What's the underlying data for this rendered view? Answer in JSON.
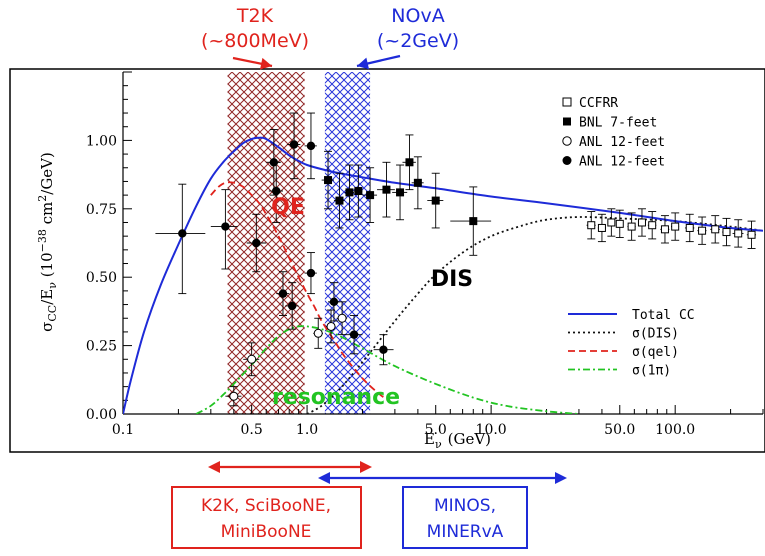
{
  "annotations": {
    "t2k": {
      "name": "T2K",
      "energy": "(~800MeV)",
      "color": "#e0231d"
    },
    "nova": {
      "name": "NOvA",
      "energy": "(~2GeV)",
      "color": "#1e2bd8"
    },
    "k2k": {
      "line1": "K2K, SciBooNE,",
      "line2": "MiniBooNE",
      "color": "#e0231d"
    },
    "minos": {
      "line1": "MINOS,",
      "line2": "MINERvA",
      "color": "#1e2bd8"
    },
    "qe_label": "QE",
    "dis_label": "DIS",
    "resonance_label": "resonance"
  },
  "chart_data": {
    "type": "line",
    "xscale": "log",
    "xlim": [
      0.1,
      300
    ],
    "ylim": [
      0,
      1.25
    ],
    "xticks": [
      {
        "value": 0.1,
        "label": "0.1"
      },
      {
        "value": 0.5,
        "label": "0.5"
      },
      {
        "value": 1.0,
        "label": "1.0"
      },
      {
        "value": 5.0,
        "label": "5.0"
      },
      {
        "value": 10.0,
        "label": "10.0"
      },
      {
        "value": 50.0,
        "label": "50.0"
      },
      {
        "value": 100.0,
        "label": "100.0"
      }
    ],
    "yticks": [
      {
        "value": 0.0,
        "label": "0.00"
      },
      {
        "value": 0.25,
        "label": "0.25"
      },
      {
        "value": 0.5,
        "label": "0.50"
      },
      {
        "value": 0.75,
        "label": "0.75"
      },
      {
        "value": 1.0,
        "label": "1.00"
      }
    ],
    "xlabel": {
      "main": "E",
      "sub": "ν",
      "unit": "(GeV)"
    },
    "ylabel": {
      "main": "σ",
      "sub1": "CC",
      "mid": "/E",
      "sub2": "ν",
      "pre": "(10",
      "exp": "−38",
      "unit": "cm",
      "exp2": "2",
      "tail": "/GeV)"
    },
    "bands": [
      {
        "name": "T2K",
        "x0": 0.37,
        "x1": 0.97,
        "color": "#8b1a1a"
      },
      {
        "name": "NOvA",
        "x0": 1.25,
        "x1": 2.2,
        "color": "#1e2bd8"
      }
    ],
    "arrows_top": [
      {
        "name": "T2K",
        "x": 0.6,
        "color": "#e0231d"
      },
      {
        "name": "NOvA",
        "x": 1.5,
        "color": "#1e2bd8"
      }
    ],
    "ranges_bottom": [
      {
        "name": "K2K, SciBooNE, MiniBooNE",
        "x0": 0.3,
        "x1": 2.2,
        "color": "#e0231d"
      },
      {
        "name": "MINOS, MINERvA",
        "x0": 1.0,
        "x1": 20,
        "color": "#1e2bd8"
      }
    ],
    "legend_markers": [
      {
        "label": "CCFRR",
        "marker": "open-square"
      },
      {
        "label": "BNL 7-feet",
        "marker": "filled-square"
      },
      {
        "label": "ANL 12-feet",
        "marker": "open-circle"
      },
      {
        "label": "ANL 12-feet",
        "marker": "filled-circle"
      }
    ],
    "legend_lines": [
      {
        "label": "Total CC",
        "style": "solid",
        "color": "#1e2bd8"
      },
      {
        "label": "σ(DIS)",
        "style": "dotted",
        "color": "#111111"
      },
      {
        "label": "σ(qel)",
        "style": "dashed",
        "color": "#e0231d"
      },
      {
        "label": "σ(1π)",
        "style": "dashdot",
        "color": "#22c422"
      }
    ],
    "series": [
      {
        "name": "Total CC",
        "color": "#1e2bd8",
        "style": "solid",
        "x": [
          0.1,
          0.11,
          0.13,
          0.16,
          0.2,
          0.25,
          0.3,
          0.35,
          0.4,
          0.45,
          0.5,
          0.55,
          0.6,
          0.7,
          0.8,
          0.9,
          1.0,
          1.2,
          1.5,
          2.0,
          3.0,
          5.0,
          10,
          20,
          50,
          100,
          200,
          300
        ],
        "y": [
          0.0,
          0.12,
          0.3,
          0.47,
          0.62,
          0.76,
          0.86,
          0.92,
          0.96,
          0.99,
          1.005,
          1.01,
          1.005,
          0.975,
          0.945,
          0.925,
          0.91,
          0.895,
          0.88,
          0.865,
          0.845,
          0.825,
          0.795,
          0.77,
          0.735,
          0.705,
          0.68,
          0.67
        ]
      },
      {
        "name": "σ(qel)",
        "color": "#e0231d",
        "style": "dashed",
        "x": [
          0.3,
          0.33,
          0.36,
          0.4,
          0.45,
          0.5,
          0.55,
          0.6,
          0.7,
          0.8,
          0.9,
          1.0,
          1.1,
          1.2,
          1.4,
          1.6,
          2.0,
          2.5,
          3.0
        ],
        "y": [
          0.8,
          0.83,
          0.845,
          0.845,
          0.83,
          0.8,
          0.77,
          0.73,
          0.65,
          0.57,
          0.5,
          0.44,
          0.39,
          0.34,
          0.27,
          0.21,
          0.13,
          0.07,
          0.035
        ]
      },
      {
        "name": "σ(DIS)",
        "color": "#111111",
        "style": "dotted",
        "x": [
          1.0,
          1.2,
          1.5,
          2.0,
          3.0,
          4.0,
          5.0,
          7.0,
          10,
          15,
          20,
          30,
          50,
          100,
          200,
          300
        ],
        "y": [
          0.0,
          0.03,
          0.09,
          0.19,
          0.34,
          0.44,
          0.51,
          0.59,
          0.65,
          0.69,
          0.71,
          0.72,
          0.715,
          0.705,
          0.685,
          0.67
        ]
      },
      {
        "name": "σ(1π)",
        "color": "#22c422",
        "style": "dashdot",
        "x": [
          0.25,
          0.3,
          0.35,
          0.4,
          0.5,
          0.6,
          0.7,
          0.8,
          0.9,
          1.0,
          1.2,
          1.5,
          2.0,
          3.0,
          5.0,
          8.0,
          12,
          20,
          30
        ],
        "y": [
          0.0,
          0.03,
          0.07,
          0.11,
          0.18,
          0.24,
          0.285,
          0.31,
          0.32,
          0.32,
          0.31,
          0.285,
          0.24,
          0.175,
          0.11,
          0.06,
          0.03,
          0.01,
          0.0
        ]
      }
    ],
    "points": [
      {
        "set": "ANL-filled",
        "marker": "filled-circle",
        "x": 0.21,
        "y": 0.66,
        "xerr": [
          0.15,
          0.28
        ],
        "yerr": [
          0.44,
          0.84
        ]
      },
      {
        "set": "ANL-filled",
        "marker": "filled-circle",
        "x": 0.36,
        "y": 0.685,
        "xerr": [
          0.3,
          0.42
        ],
        "yerr": [
          0.53,
          0.82
        ]
      },
      {
        "set": "ANL-filled",
        "marker": "filled-circle",
        "x": 0.53,
        "y": 0.625,
        "xerr": [
          0.47,
          0.6
        ],
        "yerr": [
          0.52,
          0.73
        ]
      },
      {
        "set": "ANL-filled",
        "marker": "filled-circle",
        "x": 0.66,
        "y": 0.92,
        "xerr": [
          0.6,
          0.72
        ],
        "yerr": [
          0.8,
          1.04
        ]
      },
      {
        "set": "ANL-filled",
        "marker": "filled-circle",
        "x": 0.68,
        "y": 0.815,
        "xerr": [
          0.62,
          0.74
        ],
        "yerr": [
          0.7,
          0.92
        ]
      },
      {
        "set": "ANL-filled",
        "marker": "filled-circle",
        "x": 0.85,
        "y": 0.985,
        "xerr": [
          0.78,
          0.92
        ],
        "yerr": [
          0.86,
          1.1
        ]
      },
      {
        "set": "ANL-filled",
        "marker": "filled-circle",
        "x": 1.05,
        "y": 0.98,
        "xerr": [
          0.97,
          1.13
        ],
        "yerr": [
          0.86,
          1.1
        ]
      },
      {
        "set": "ANL-filled",
        "marker": "filled-circle",
        "x": 0.74,
        "y": 0.44,
        "xerr": [
          0.68,
          0.8
        ],
        "yerr": [
          0.36,
          0.52
        ]
      },
      {
        "set": "ANL-filled",
        "marker": "filled-circle",
        "x": 0.83,
        "y": 0.395,
        "xerr": [
          0.76,
          0.9
        ],
        "yerr": [
          0.31,
          0.48
        ]
      },
      {
        "set": "ANL-filled",
        "marker": "filled-circle",
        "x": 1.05,
        "y": 0.515,
        "xerr": [
          0.97,
          1.13
        ],
        "yerr": [
          0.44,
          0.59
        ]
      },
      {
        "set": "ANL-filled",
        "marker": "filled-circle",
        "x": 1.4,
        "y": 0.41,
        "xerr": [
          1.3,
          1.5
        ],
        "yerr": [
          0.34,
          0.48
        ]
      },
      {
        "set": "ANL-filled",
        "marker": "filled-circle",
        "x": 1.8,
        "y": 0.29,
        "xerr": [
          1.6,
          2.0
        ],
        "yerr": [
          0.22,
          0.36
        ]
      },
      {
        "set": "ANL-filled",
        "marker": "filled-circle",
        "x": 2.6,
        "y": 0.235,
        "xerr": [
          2.3,
          2.95
        ],
        "yerr": [
          0.18,
          0.29
        ]
      },
      {
        "set": "BNL",
        "marker": "filled-square",
        "x": 1.3,
        "y": 0.855,
        "xerr": [
          1.2,
          1.4
        ],
        "yerr": [
          0.75,
          0.96
        ]
      },
      {
        "set": "BNL",
        "marker": "filled-square",
        "x": 1.5,
        "y": 0.78,
        "xerr": [
          1.4,
          1.6
        ],
        "yerr": [
          0.68,
          0.88
        ]
      },
      {
        "set": "BNL",
        "marker": "filled-square",
        "x": 1.7,
        "y": 0.81,
        "xerr": [
          1.6,
          1.8
        ],
        "yerr": [
          0.71,
          0.91
        ]
      },
      {
        "set": "BNL",
        "marker": "filled-square",
        "x": 1.9,
        "y": 0.815,
        "xerr": [
          1.8,
          2.0
        ],
        "yerr": [
          0.72,
          0.91
        ]
      },
      {
        "set": "BNL",
        "marker": "filled-square",
        "x": 2.2,
        "y": 0.8,
        "xerr": [
          2.0,
          2.4
        ],
        "yerr": [
          0.7,
          0.9
        ]
      },
      {
        "set": "BNL",
        "marker": "filled-square",
        "x": 2.7,
        "y": 0.82,
        "xerr": [
          2.4,
          3.0
        ],
        "yerr": [
          0.72,
          0.92
        ]
      },
      {
        "set": "BNL",
        "marker": "filled-square",
        "x": 3.2,
        "y": 0.81,
        "xerr": [
          2.9,
          3.5
        ],
        "yerr": [
          0.71,
          0.91
        ]
      },
      {
        "set": "BNL",
        "marker": "filled-square",
        "x": 3.6,
        "y": 0.92,
        "xerr": [
          3.3,
          3.9
        ],
        "yerr": [
          0.82,
          1.02
        ]
      },
      {
        "set": "BNL",
        "marker": "filled-square",
        "x": 4.0,
        "y": 0.845,
        "xerr": [
          3.7,
          4.3
        ],
        "yerr": [
          0.75,
          0.94
        ]
      },
      {
        "set": "BNL",
        "marker": "filled-square",
        "x": 5.0,
        "y": 0.78,
        "xerr": [
          4.5,
          5.5
        ],
        "yerr": [
          0.68,
          0.88
        ]
      },
      {
        "set": "BNL",
        "marker": "filled-square",
        "x": 8.0,
        "y": 0.705,
        "xerr": [
          6.0,
          10.0
        ],
        "yerr": [
          0.58,
          0.83
        ]
      },
      {
        "set": "ANL-open",
        "marker": "open-circle",
        "x": 1.15,
        "y": 0.295,
        "xerr": [
          1.08,
          1.22
        ],
        "yerr": [
          0.24,
          0.35
        ]
      },
      {
        "set": "ANL-open",
        "marker": "open-circle",
        "x": 1.35,
        "y": 0.32,
        "xerr": [
          1.27,
          1.43
        ],
        "yerr": [
          0.26,
          0.38
        ]
      },
      {
        "set": "ANL-open",
        "marker": "open-circle",
        "x": 1.55,
        "y": 0.35,
        "xerr": [
          1.45,
          1.65
        ],
        "yerr": [
          0.29,
          0.41
        ]
      },
      {
        "set": "ANL-open",
        "marker": "open-circle",
        "x": 0.5,
        "y": 0.2,
        "xerr": [
          0.45,
          0.55
        ],
        "yerr": [
          0.14,
          0.26
        ]
      },
      {
        "set": "ANL-open",
        "marker": "open-circle",
        "x": 0.4,
        "y": 0.065,
        "xerr": [
          0.36,
          0.44
        ],
        "yerr": [
          0.03,
          0.1
        ]
      },
      {
        "set": "CCFRR",
        "marker": "open-square",
        "x": 35,
        "y": 0.69,
        "xerr": [
          33,
          37
        ],
        "yerr": [
          0.64,
          0.74
        ]
      },
      {
        "set": "CCFRR",
        "marker": "open-square",
        "x": 40,
        "y": 0.68,
        "xerr": [
          38,
          42
        ],
        "yerr": [
          0.63,
          0.73
        ]
      },
      {
        "set": "CCFRR",
        "marker": "open-square",
        "x": 45,
        "y": 0.7,
        "xerr": [
          43,
          47
        ],
        "yerr": [
          0.65,
          0.75
        ]
      },
      {
        "set": "CCFRR",
        "marker": "open-square",
        "x": 50,
        "y": 0.695,
        "xerr": [
          48,
          52
        ],
        "yerr": [
          0.645,
          0.745
        ]
      },
      {
        "set": "CCFRR",
        "marker": "open-square",
        "x": 58,
        "y": 0.685,
        "xerr": [
          55,
          61
        ],
        "yerr": [
          0.635,
          0.735
        ]
      },
      {
        "set": "CCFRR",
        "marker": "open-square",
        "x": 66,
        "y": 0.7,
        "xerr": [
          63,
          69
        ],
        "yerr": [
          0.65,
          0.75
        ]
      },
      {
        "set": "CCFRR",
        "marker": "open-square",
        "x": 75,
        "y": 0.69,
        "xerr": [
          71,
          79
        ],
        "yerr": [
          0.64,
          0.74
        ]
      },
      {
        "set": "CCFRR",
        "marker": "open-square",
        "x": 88,
        "y": 0.675,
        "xerr": [
          83,
          93
        ],
        "yerr": [
          0.625,
          0.725
        ]
      },
      {
        "set": "CCFRR",
        "marker": "open-square",
        "x": 100,
        "y": 0.685,
        "xerr": [
          95,
          105
        ],
        "yerr": [
          0.635,
          0.735
        ]
      },
      {
        "set": "CCFRR",
        "marker": "open-square",
        "x": 120,
        "y": 0.68,
        "xerr": [
          113,
          127
        ],
        "yerr": [
          0.63,
          0.73
        ]
      },
      {
        "set": "CCFRR",
        "marker": "open-square",
        "x": 140,
        "y": 0.67,
        "xerr": [
          132,
          148
        ],
        "yerr": [
          0.62,
          0.72
        ]
      },
      {
        "set": "CCFRR",
        "marker": "open-square",
        "x": 165,
        "y": 0.675,
        "xerr": [
          155,
          175
        ],
        "yerr": [
          0.625,
          0.725
        ]
      },
      {
        "set": "CCFRR",
        "marker": "open-square",
        "x": 190,
        "y": 0.665,
        "xerr": [
          180,
          200
        ],
        "yerr": [
          0.615,
          0.715
        ]
      },
      {
        "set": "CCFRR",
        "marker": "open-square",
        "x": 220,
        "y": 0.66,
        "xerr": [
          205,
          235
        ],
        "yerr": [
          0.61,
          0.71
        ]
      },
      {
        "set": "CCFRR",
        "marker": "open-square",
        "x": 260,
        "y": 0.655,
        "xerr": [
          245,
          275
        ],
        "yerr": [
          0.605,
          0.705
        ]
      }
    ]
  }
}
